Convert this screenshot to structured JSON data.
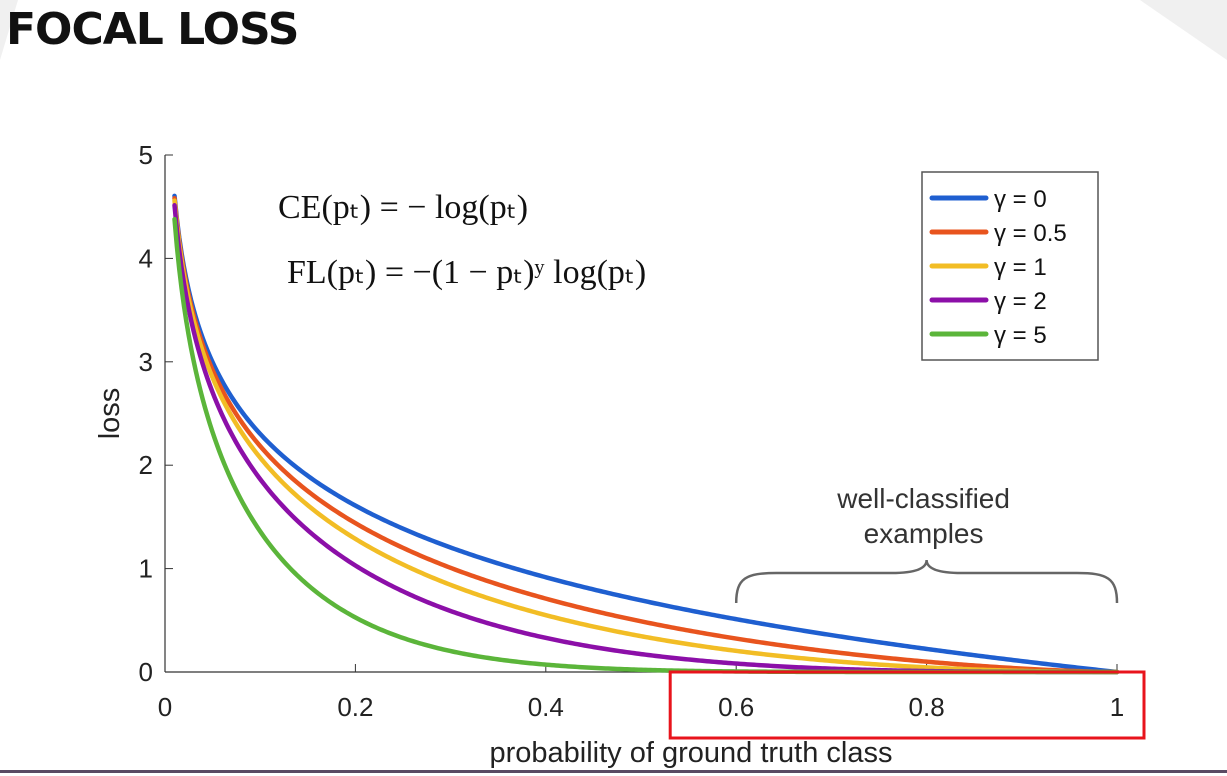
{
  "slide": {
    "title": "FOCAL LOSS"
  },
  "formulas": {
    "ce": "CE(pₜ) = − log(pₜ)",
    "fl": "FL(pₜ) = −(1 − pₜ)ʸ log(pₜ)"
  },
  "annotation": {
    "text_line1": "well-classified",
    "text_line2": "examples"
  },
  "colors": {
    "highlight_box": "#e8141c",
    "axis": "#333333",
    "brace": "#666666"
  },
  "chart_data": {
    "type": "line",
    "title": "",
    "xlabel": "probability of ground truth class",
    "ylabel": "loss",
    "xlim": [
      0,
      1
    ],
    "ylim": [
      0,
      5
    ],
    "xticks": [
      0,
      0.2,
      0.4,
      0.6,
      0.8,
      1
    ],
    "xtick_labels": [
      "0",
      "0.2",
      "0.4",
      "0.6",
      "0.8",
      "1"
    ],
    "yticks": [
      0,
      1,
      2,
      3,
      4,
      5
    ],
    "ytick_labels": [
      "0",
      "1",
      "2",
      "3",
      "4",
      "5"
    ],
    "legend_position": "top-right",
    "formula": "loss = -(1 - p)^gamma * ln(p)",
    "highlighted_x_range": [
      0.6,
      1
    ],
    "x": [
      0.01,
      0.02,
      0.05,
      0.1,
      0.2,
      0.3,
      0.4,
      0.5,
      0.6,
      0.7,
      0.8,
      0.9,
      1.0
    ],
    "series": [
      {
        "name": "γ = 0",
        "gamma": 0,
        "color": "#1f5fd0",
        "values": [
          4.61,
          3.91,
          3.0,
          2.3,
          1.61,
          1.2,
          0.92,
          0.69,
          0.51,
          0.36,
          0.22,
          0.11,
          0.0
        ]
      },
      {
        "name": "γ = 0.5",
        "gamma": 0.5,
        "color": "#e8541e",
        "values": [
          4.58,
          3.87,
          2.92,
          2.18,
          1.44,
          1.01,
          0.71,
          0.49,
          0.32,
          0.2,
          0.1,
          0.03,
          0.0
        ]
      },
      {
        "name": "γ = 1",
        "gamma": 1,
        "color": "#f2bd25",
        "values": [
          4.56,
          3.83,
          2.85,
          2.07,
          1.29,
          0.84,
          0.55,
          0.35,
          0.2,
          0.11,
          0.04,
          0.01,
          0.0
        ]
      },
      {
        "name": "γ = 2",
        "gamma": 2,
        "color": "#8c0fa8",
        "values": [
          4.51,
          3.76,
          2.71,
          1.87,
          1.03,
          0.59,
          0.33,
          0.17,
          0.08,
          0.03,
          0.01,
          0.0,
          0.0
        ]
      },
      {
        "name": "γ = 5",
        "gamma": 5,
        "color": "#5bb53a",
        "values": [
          4.39,
          3.54,
          2.32,
          1.36,
          0.53,
          0.2,
          0.07,
          0.02,
          0.01,
          0.0,
          0.0,
          0.0,
          0.0
        ]
      }
    ]
  }
}
